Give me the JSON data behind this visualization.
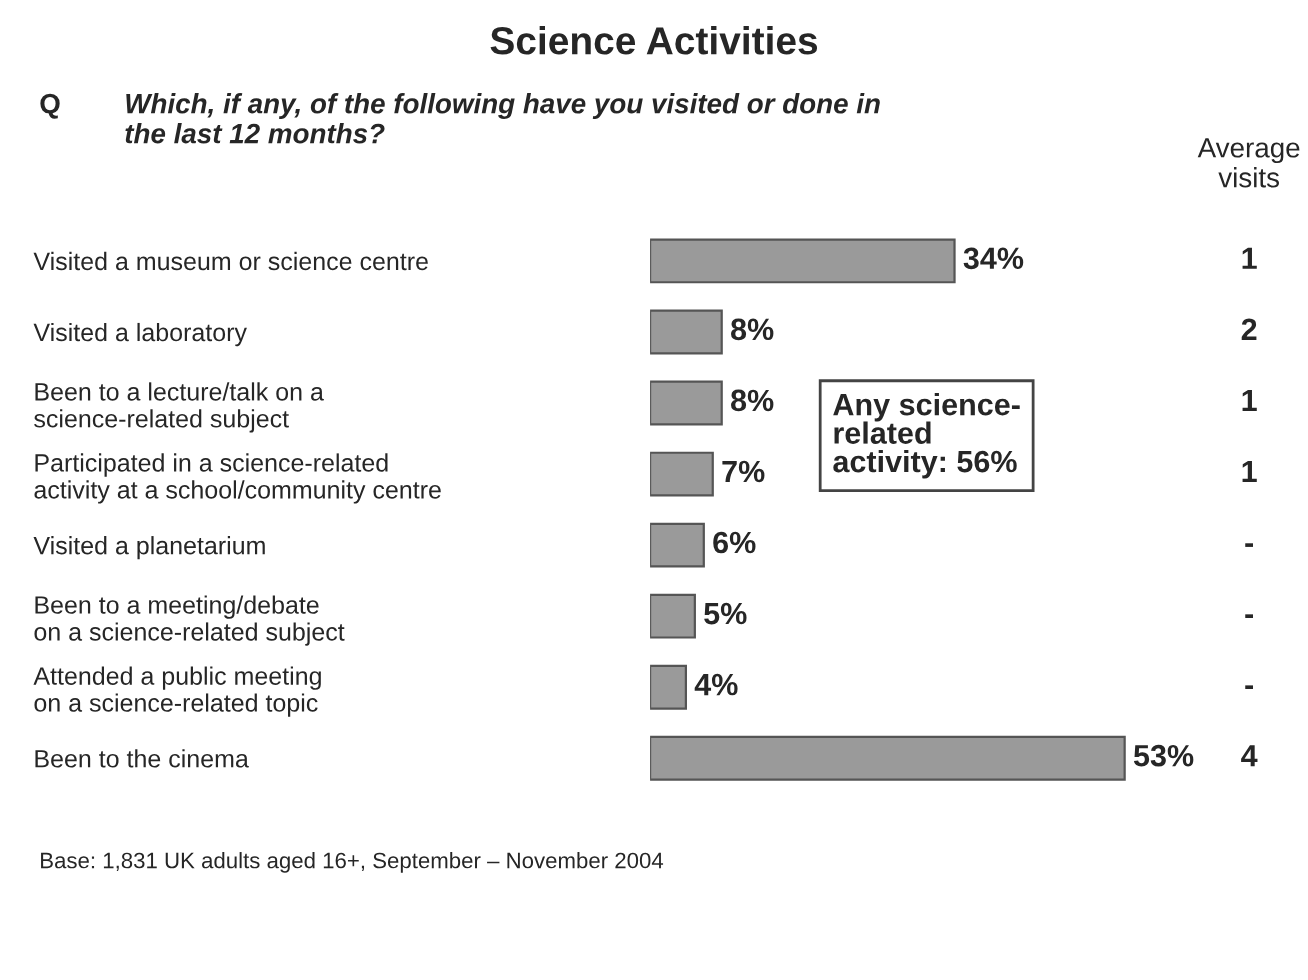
{
  "chart_data": {
    "type": "bar",
    "orientation": "horizontal",
    "title": "Science Activities",
    "subtitle": "Which, if any, of the following have you visited or done in\nthe last 12 months?",
    "categories": [
      "Visited a museum or science centre",
      "Visited a laboratory",
      "Been to a lecture/talk on a\nscience-related subject",
      "Participated in a science-related\nactivity at a school/community centre",
      "Visited a planetarium",
      "Been to a meeting/debate\non a science-related subject",
      "Attended a public meeting\non a science-related topic",
      "Been to the cinema"
    ],
    "values": [
      34,
      8,
      8,
      7,
      6,
      5,
      4,
      53
    ],
    "value_labels": [
      "34%",
      "8%",
      "8%",
      "7%",
      "6%",
      "5%",
      "4%",
      "53%"
    ],
    "color": "#9a9a9a",
    "annotations": [
      "Q",
      "Average\nvisits",
      "1",
      "2",
      "1",
      "1",
      "-",
      "-",
      "-",
      "4",
      "Any science-\nrelated\nactivity: 56%",
      "Base: 1,831 UK adults aged 16+, September – November 2004"
    ],
    "grid": false,
    "legend": false
  }
}
